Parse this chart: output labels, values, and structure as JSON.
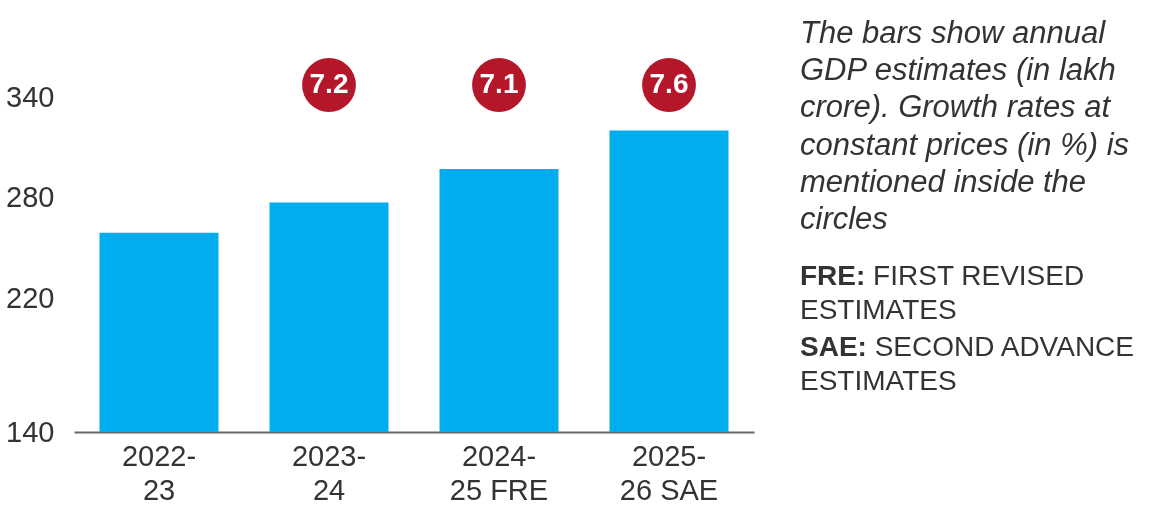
{
  "chart_data": {
    "type": "bar",
    "categories": [
      "2022-23",
      "2023-24",
      "2024-25 FRE",
      "2025-26 SAE"
    ],
    "values": [
      259,
      277,
      297,
      320
    ],
    "color": "#00aeef",
    "ylim": [
      140,
      340
    ],
    "yticks": [
      140,
      220,
      280,
      340
    ],
    "grid": false,
    "annotations": [
      "7.2",
      "7.1",
      "7.6",
      "The bars show annual GDP estimates (in lakh crore). Growth rates at constant prices (in %) is mentioned inside the circles",
      "FRE: FIRST REVISED ESTIMATES",
      "SAE: SECOND ADVANCE ESTIMATES"
    ]
  }
}
